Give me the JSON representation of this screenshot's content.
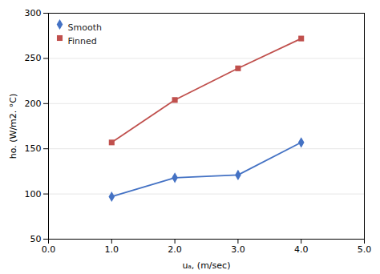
{
  "chart_data": {
    "type": "line",
    "xlabel": "uₐ, (m/sec)",
    "ylabel": "ho. (W/m2. °C)",
    "x": [
      1,
      2,
      3,
      4
    ],
    "series": [
      {
        "name": "Smooth",
        "color": "#4472C4",
        "marker": "diamond",
        "values": [
          97,
          118,
          121,
          157
        ]
      },
      {
        "name": "Finned",
        "color": "#C0504D",
        "marker": "square",
        "values": [
          157,
          204,
          239,
          272
        ]
      }
    ],
    "xlim": [
      0,
      5
    ],
    "ylim": [
      50,
      300
    ],
    "xticks": [
      0,
      1,
      2,
      3,
      4,
      5
    ],
    "yticks": [
      50,
      100,
      150,
      200,
      250,
      300
    ],
    "grid": "y",
    "legend": "upper left"
  }
}
